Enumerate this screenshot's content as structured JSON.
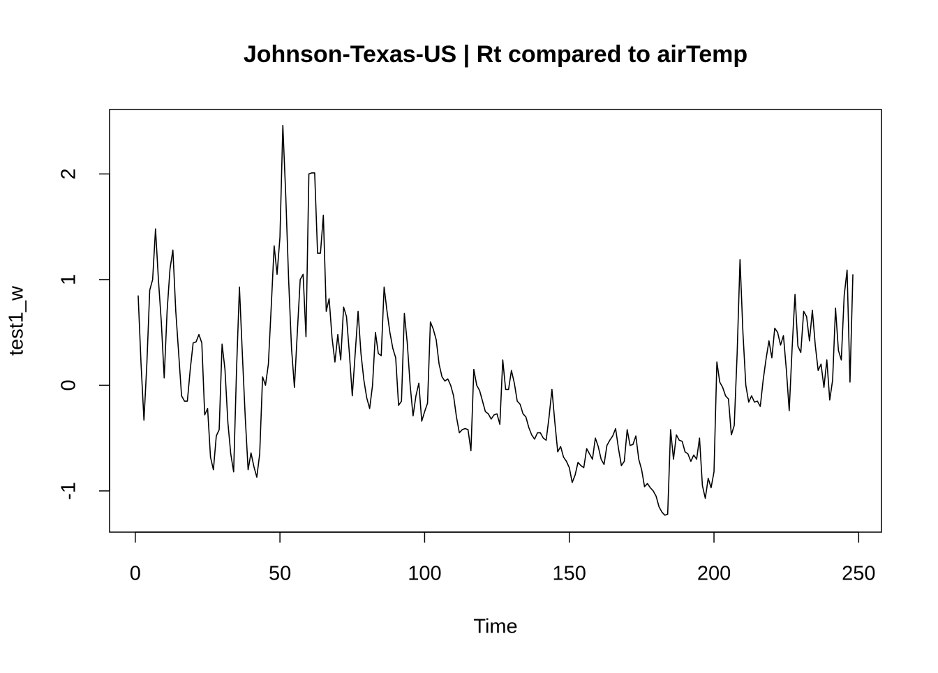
{
  "chart_data": {
    "type": "line",
    "title": "Johnson-Texas-US | Rt compared to airTemp",
    "x_label": "Time",
    "y_label": "test1_w",
    "color": "#000000",
    "xlim": [
      -8.88,
      257.88
    ],
    "xticks": [
      0,
      50,
      100,
      150,
      200,
      250
    ],
    "ylim": [
      -1.39,
      2.61
    ],
    "yticks": [
      -1,
      0,
      1,
      2
    ],
    "x": [
      1,
      2,
      3,
      4,
      5,
      6,
      7,
      8,
      9,
      10,
      11,
      12,
      13,
      14,
      15,
      16,
      17,
      18,
      19,
      20,
      21,
      22,
      23,
      24,
      25,
      26,
      27,
      28,
      29,
      30,
      31,
      32,
      33,
      34,
      35,
      36,
      37,
      38,
      39,
      40,
      41,
      42,
      43,
      44,
      45,
      46,
      47,
      48,
      49,
      50,
      51,
      52,
      53,
      54,
      55,
      56,
      57,
      58,
      59,
      60,
      61,
      62,
      63,
      64,
      65,
      66,
      67,
      68,
      69,
      70,
      71,
      72,
      73,
      74,
      75,
      76,
      77,
      78,
      79,
      80,
      81,
      82,
      83,
      84,
      85,
      86,
      87,
      88,
      89,
      90,
      91,
      92,
      93,
      94,
      95,
      96,
      97,
      98,
      99,
      100,
      101,
      102,
      103,
      104,
      105,
      106,
      107,
      108,
      109,
      110,
      111,
      112,
      113,
      114,
      115,
      116,
      117,
      118,
      119,
      120,
      121,
      122,
      123,
      124,
      125,
      126,
      127,
      128,
      129,
      130,
      131,
      132,
      133,
      134,
      135,
      136,
      137,
      138,
      139,
      140,
      141,
      142,
      143,
      144,
      145,
      146,
      147,
      148,
      149,
      150,
      151,
      152,
      153,
      154,
      155,
      156,
      157,
      158,
      159,
      160,
      161,
      162,
      163,
      164,
      165,
      166,
      167,
      168,
      169,
      170,
      171,
      172,
      173,
      174,
      175,
      176,
      177,
      178,
      179,
      180,
      181,
      182,
      183,
      184,
      185,
      186,
      187,
      188,
      189,
      190,
      191,
      192,
      193,
      194,
      195,
      196,
      197,
      198,
      199,
      200,
      201,
      202,
      203,
      204,
      205,
      206,
      207,
      208,
      209,
      210,
      211,
      212,
      213,
      214,
      215,
      216,
      217,
      218,
      219,
      220,
      221,
      222,
      223,
      224,
      225,
      226,
      227,
      228,
      229,
      230,
      231,
      232,
      233,
      234,
      235,
      236,
      237,
      238,
      239,
      240,
      241,
      242,
      243,
      244,
      245,
      246,
      247,
      248
    ],
    "values": [
      0.85,
      0.2,
      -0.33,
      0.2,
      0.9,
      1.0,
      1.48,
      1.0,
      0.6,
      0.07,
      0.7,
      1.1,
      1.28,
      0.7,
      0.3,
      -0.1,
      -0.15,
      -0.15,
      0.15,
      0.4,
      0.41,
      0.48,
      0.4,
      -0.28,
      -0.22,
      -0.68,
      -0.8,
      -0.48,
      -0.42,
      0.39,
      0.15,
      -0.35,
      -0.65,
      -0.82,
      0.15,
      0.93,
      0.3,
      -0.3,
      -0.8,
      -0.64,
      -0.77,
      -0.87,
      -0.65,
      0.08,
      0.0,
      0.2,
      0.75,
      1.32,
      1.05,
      1.4,
      2.46,
      1.8,
      1.0,
      0.35,
      -0.02,
      0.5,
      1.0,
      1.05,
      0.46,
      2.0,
      2.01,
      2.01,
      1.25,
      1.25,
      1.61,
      0.7,
      0.82,
      0.45,
      0.22,
      0.48,
      0.24,
      0.74,
      0.65,
      0.3,
      -0.1,
      0.3,
      0.7,
      0.3,
      0.05,
      -0.12,
      -0.22,
      0.0,
      0.5,
      0.3,
      0.28,
      0.93,
      0.7,
      0.5,
      0.35,
      0.26,
      -0.19,
      -0.15,
      0.68,
      0.4,
      0.0,
      -0.29,
      -0.1,
      0.02,
      -0.34,
      -0.25,
      -0.17,
      0.6,
      0.53,
      0.43,
      0.2,
      0.08,
      0.04,
      0.06,
      0.0,
      -0.1,
      -0.3,
      -0.45,
      -0.42,
      -0.41,
      -0.42,
      -0.62,
      0.15,
      0.0,
      -0.05,
      -0.15,
      -0.25,
      -0.27,
      -0.32,
      -0.28,
      -0.27,
      -0.37,
      0.24,
      -0.04,
      -0.04,
      0.14,
      0.02,
      -0.15,
      -0.18,
      -0.27,
      -0.3,
      -0.4,
      -0.47,
      -0.51,
      -0.45,
      -0.45,
      -0.5,
      -0.52,
      -0.3,
      -0.04,
      -0.35,
      -0.63,
      -0.58,
      -0.68,
      -0.72,
      -0.78,
      -0.92,
      -0.85,
      -0.73,
      -0.76,
      -0.78,
      -0.6,
      -0.65,
      -0.7,
      -0.5,
      -0.58,
      -0.7,
      -0.75,
      -0.57,
      -0.52,
      -0.48,
      -0.41,
      -0.6,
      -0.76,
      -0.72,
      -0.42,
      -0.57,
      -0.56,
      -0.48,
      -0.7,
      -0.8,
      -0.96,
      -0.93,
      -0.97,
      -1.0,
      -1.05,
      -1.15,
      -1.2,
      -1.23,
      -1.22,
      -0.42,
      -0.7,
      -0.47,
      -0.52,
      -0.53,
      -0.63,
      -0.65,
      -0.72,
      -0.66,
      -0.7,
      -0.5,
      -0.95,
      -1.07,
      -0.88,
      -0.97,
      -0.82,
      0.22,
      0.03,
      -0.02,
      -0.1,
      -0.13,
      -0.47,
      -0.38,
      0.3,
      1.19,
      0.5,
      0.0,
      -0.16,
      -0.1,
      -0.16,
      -0.15,
      -0.2,
      0.05,
      0.25,
      0.42,
      0.26,
      0.54,
      0.5,
      0.38,
      0.47,
      0.15,
      -0.24,
      0.35,
      0.86,
      0.37,
      0.31,
      0.7,
      0.65,
      0.42,
      0.71,
      0.38,
      0.14,
      0.2,
      -0.02,
      0.24,
      -0.14,
      0.05,
      0.73,
      0.33,
      0.24,
      0.85,
      1.09,
      0.03,
      1.05
    ]
  }
}
